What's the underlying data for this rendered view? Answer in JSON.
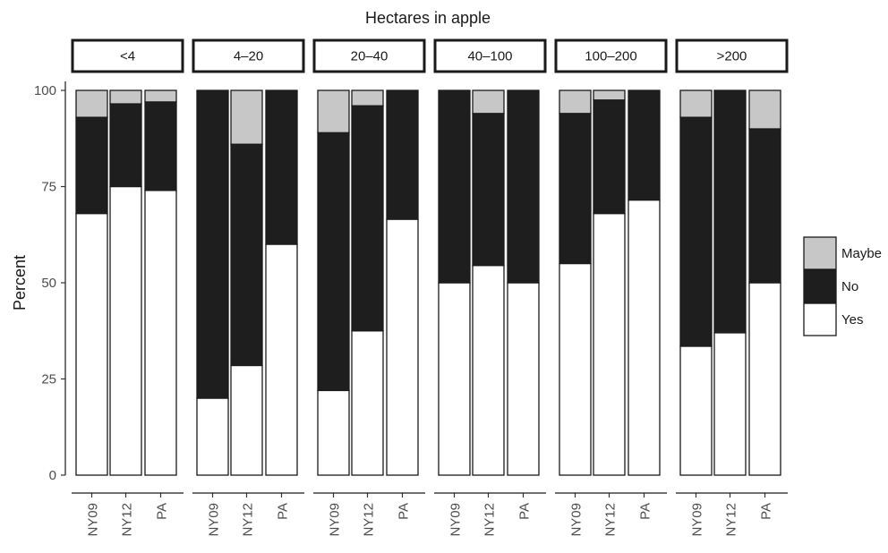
{
  "chart_data": {
    "type": "bar",
    "stacked": true,
    "title": "Hectares in apple",
    "ylabel": "Percent",
    "xlabel": "",
    "ylim": [
      0,
      100
    ],
    "yticks": [
      0,
      25,
      50,
      75,
      100
    ],
    "categories": [
      "NY09",
      "NY12",
      "PA"
    ],
    "legend": {
      "position": "right",
      "entries": [
        {
          "name": "Maybe",
          "color": "#c7c7c7"
        },
        {
          "name": "No",
          "color": "#1e1e1e"
        },
        {
          "name": "Yes",
          "color": "#ffffff"
        }
      ]
    },
    "facets": [
      {
        "label": "<4",
        "bars": [
          {
            "category": "NY09",
            "Yes": 68,
            "No": 25,
            "Maybe": 7
          },
          {
            "category": "NY12",
            "Yes": 75,
            "No": 21.5,
            "Maybe": 3.5
          },
          {
            "category": "PA",
            "Yes": 74,
            "No": 23,
            "Maybe": 3
          }
        ]
      },
      {
        "label": "4–20",
        "bars": [
          {
            "category": "NY09",
            "Yes": 20,
            "No": 80,
            "Maybe": 0
          },
          {
            "category": "NY12",
            "Yes": 28.5,
            "No": 57.5,
            "Maybe": 14
          },
          {
            "category": "PA",
            "Yes": 60,
            "No": 40,
            "Maybe": 0
          }
        ]
      },
      {
        "label": "20–40",
        "bars": [
          {
            "category": "NY09",
            "Yes": 22,
            "No": 67,
            "Maybe": 11
          },
          {
            "category": "NY12",
            "Yes": 37.5,
            "No": 58.5,
            "Maybe": 4
          },
          {
            "category": "PA",
            "Yes": 66.5,
            "No": 33.5,
            "Maybe": 0
          }
        ]
      },
      {
        "label": "40–100",
        "bars": [
          {
            "category": "NY09",
            "Yes": 50,
            "No": 50,
            "Maybe": 0
          },
          {
            "category": "NY12",
            "Yes": 54.5,
            "No": 39.5,
            "Maybe": 6
          },
          {
            "category": "PA",
            "Yes": 50,
            "No": 50,
            "Maybe": 0
          }
        ]
      },
      {
        "label": "100–200",
        "bars": [
          {
            "category": "NY09",
            "Yes": 55,
            "No": 39,
            "Maybe": 6
          },
          {
            "category": "NY12",
            "Yes": 68,
            "No": 29.5,
            "Maybe": 2.5
          },
          {
            "category": "PA",
            "Yes": 71.5,
            "No": 28.5,
            "Maybe": 0
          }
        ]
      },
      {
        "label": ">200",
        "bars": [
          {
            "category": "NY09",
            "Yes": 33.5,
            "No": 59.5,
            "Maybe": 7
          },
          {
            "category": "NY12",
            "Yes": 37,
            "No": 63,
            "Maybe": 0
          },
          {
            "category": "PA",
            "Yes": 50,
            "No": 40,
            "Maybe": 10
          }
        ]
      }
    ]
  }
}
